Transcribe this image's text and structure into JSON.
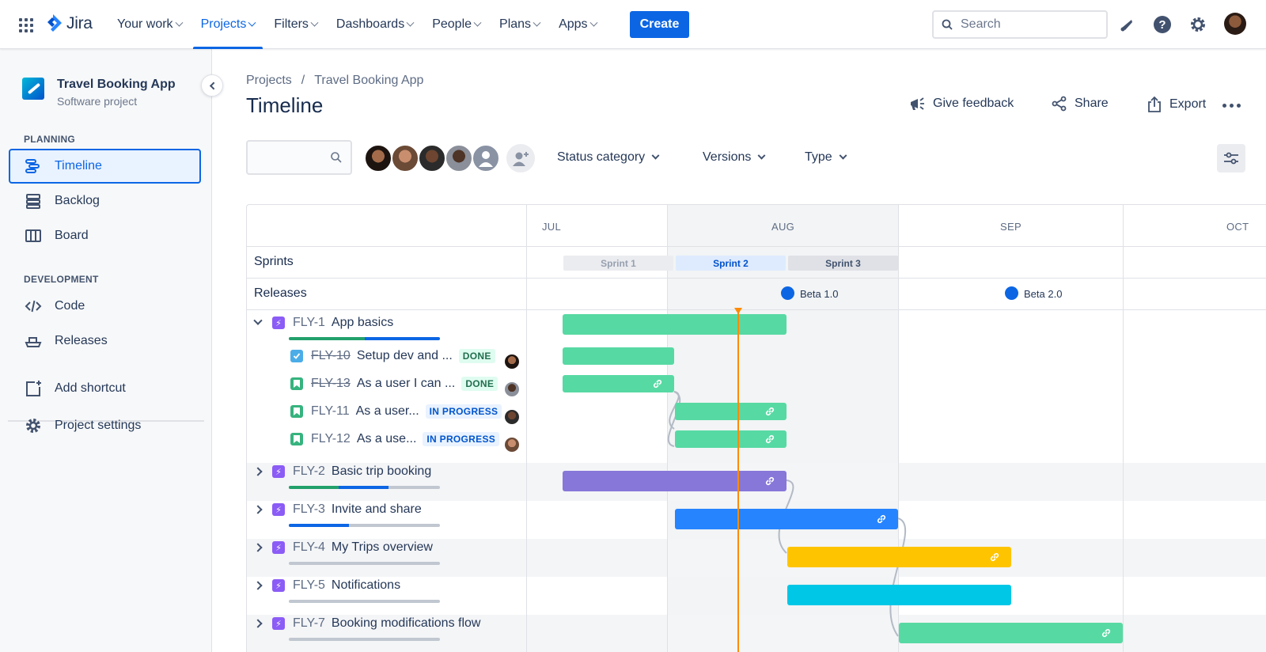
{
  "topnav": {
    "logo": "Jira",
    "items": [
      {
        "label": "Your work"
      },
      {
        "label": "Projects"
      },
      {
        "label": "Filters"
      },
      {
        "label": "Dashboards"
      },
      {
        "label": "People"
      },
      {
        "label": "Plans"
      },
      {
        "label": "Apps"
      }
    ],
    "active_item": "Projects",
    "create_label": "Create",
    "search_placeholder": "Search",
    "icons": [
      "app-switcher-icon",
      "notifications-icon",
      "help-icon",
      "settings-icon",
      "avatar"
    ]
  },
  "sidebar": {
    "project_name": "Travel Booking App",
    "project_type": "Software project",
    "planning_heading": "PLANNING",
    "planning_items": [
      {
        "label": "Timeline",
        "icon": "timeline-icon",
        "active": true
      },
      {
        "label": "Backlog",
        "icon": "backlog-icon"
      },
      {
        "label": "Board",
        "icon": "board-icon"
      }
    ],
    "development_heading": "DEVELOPMENT",
    "development_items": [
      {
        "label": "Code",
        "icon": "code-icon"
      },
      {
        "label": "Releases",
        "icon": "ship-icon"
      }
    ],
    "footer_items": [
      {
        "label": "Add shortcut",
        "icon": "add-shortcut-icon"
      },
      {
        "label": "Project settings",
        "icon": "gear-icon"
      }
    ]
  },
  "page": {
    "breadcrumbs": [
      "Projects",
      "Travel Booking App"
    ],
    "breadcrumb_separator": "/",
    "title": "Timeline",
    "actions": {
      "feedback": "Give feedback",
      "share": "Share",
      "export": "Export"
    }
  },
  "filters": {
    "search_value": "",
    "dropdowns": [
      "Status category",
      "Versions",
      "Type"
    ]
  },
  "timeline": {
    "months": [
      "JUL",
      "AUG",
      "SEP",
      "OCT"
    ],
    "sprints_label": "Sprints",
    "releases_label": "Releases",
    "sprints": [
      "Sprint 1",
      "Sprint 2",
      "Sprint 3"
    ],
    "releases": [
      "Beta 1.0",
      "Beta 2.0"
    ],
    "issues": [
      {
        "key": "FLY-1",
        "title": "App basics",
        "type": "epic",
        "expanded": true,
        "progress_done": 0.5,
        "progress_inprogress": 0.5,
        "bar_color": "#57d9a3"
      },
      {
        "key": "FLY-10",
        "title": "Setup dev and ...",
        "type": "task",
        "status": "DONE",
        "done": true,
        "bar_color": "#57d9a3"
      },
      {
        "key": "FLY-13",
        "title": "As a user I can ...",
        "type": "story",
        "status": "DONE",
        "done": true,
        "bar_color": "#57d9a3"
      },
      {
        "key": "FLY-11",
        "title": "As a user...",
        "type": "story",
        "status": "IN PROGRESS",
        "bar_color": "#57d9a3"
      },
      {
        "key": "FLY-12",
        "title": "As a use...",
        "type": "story",
        "status": "IN PROGRESS",
        "bar_color": "#57d9a3"
      },
      {
        "key": "FLY-2",
        "title": "Basic trip booking",
        "type": "epic",
        "expanded": false,
        "progress_done": 0.33,
        "progress_inprogress": 0.33,
        "bar_color": "#8777d9"
      },
      {
        "key": "FLY-3",
        "title": "Invite and share",
        "type": "epic",
        "expanded": false,
        "progress_done": 0,
        "progress_inprogress": 0.4,
        "bar_color": "#2684ff"
      },
      {
        "key": "FLY-4",
        "title": "My Trips overview",
        "type": "epic",
        "expanded": false,
        "progress_done": 0,
        "progress_inprogress": 0,
        "bar_color": "#ffc400"
      },
      {
        "key": "FLY-5",
        "title": "Notifications",
        "type": "epic",
        "expanded": false,
        "progress_done": 0,
        "progress_inprogress": 0,
        "bar_color": "#00c7e6"
      },
      {
        "key": "FLY-7",
        "title": "Booking modifications flow",
        "type": "epic",
        "expanded": false,
        "progress_done": 0,
        "progress_inprogress": 0,
        "bar_color": "#57d9a3"
      }
    ]
  },
  "colors": {
    "accent": "#0c66e4",
    "today_line": "#ff8b00",
    "done_green": "#22a06b"
  }
}
